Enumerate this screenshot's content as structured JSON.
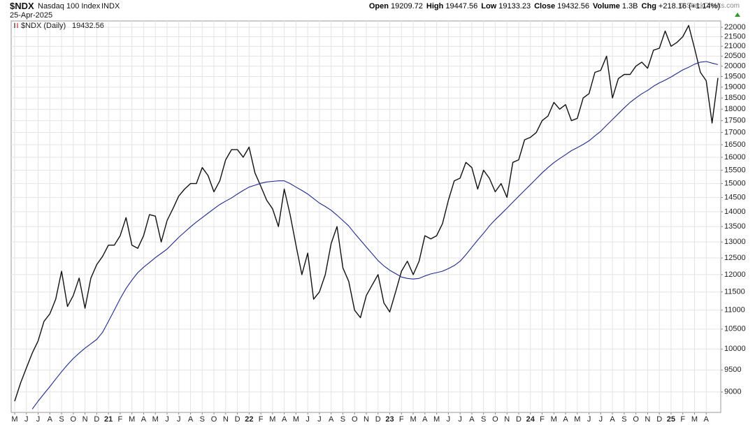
{
  "header": {
    "symbol": "$NDX",
    "name": "Nasdaq 100 Index",
    "exchange": "INDX",
    "date": "25-Apr-2025",
    "stats": [
      {
        "label": "Open",
        "value": "19209.72"
      },
      {
        "label": "High",
        "value": "19447.56"
      },
      {
        "label": "Low",
        "value": "19133.23"
      },
      {
        "label": "Close",
        "value": "19432.56"
      },
      {
        "label": "Volume",
        "value": "1.3B"
      },
      {
        "label": "Chg",
        "value": "+218.16 (+1.14%)"
      }
    ],
    "copyright": "© StockCharts.com"
  },
  "chart_data": {
    "type": "line",
    "yscale": "log",
    "grid": true,
    "categories": [
      "M",
      null,
      "J",
      null,
      "J",
      null,
      "A",
      null,
      "S",
      null,
      "O",
      null,
      "N",
      null,
      "D",
      null,
      "21",
      null,
      "F",
      null,
      "M",
      null,
      "A",
      null,
      "M",
      null,
      "J",
      null,
      "J",
      null,
      "A",
      null,
      "S",
      null,
      "O",
      null,
      "N",
      null,
      "D",
      null,
      "22",
      null,
      "F",
      null,
      "M",
      null,
      "A",
      null,
      "M",
      null,
      "J",
      null,
      "J",
      null,
      "A",
      null,
      "S",
      null,
      "O",
      null,
      "N",
      null,
      "D",
      null,
      "23",
      null,
      "F",
      null,
      "M",
      null,
      "A",
      null,
      "M",
      null,
      "J",
      null,
      "J",
      null,
      "A",
      null,
      "S",
      null,
      "O",
      null,
      "N",
      null,
      "D",
      null,
      "24",
      null,
      "F",
      null,
      "M",
      null,
      "A",
      null,
      "M",
      null,
      "J",
      null,
      "J",
      null,
      "A",
      null,
      "S",
      null,
      "O",
      null,
      "N",
      null,
      "D",
      null,
      "25",
      null,
      "F",
      null,
      "M",
      null,
      "A",
      null,
      null
    ],
    "series": [
      {
        "name": "$NDX (Daily)",
        "color": "#111111",
        "values": [
          8800,
          9200,
          9550,
          9900,
          10200,
          10700,
          10900,
          11300,
          12100,
          11100,
          11400,
          11900,
          11050,
          11900,
          12300,
          12550,
          12900,
          12900,
          13200,
          13800,
          12900,
          12800,
          13200,
          13900,
          13850,
          13000,
          13700,
          14100,
          14550,
          14800,
          15000,
          15000,
          15600,
          15300,
          14700,
          15100,
          15900,
          16300,
          16300,
          16000,
          16400,
          15400,
          14900,
          14400,
          14100,
          13500,
          14800,
          13900,
          12900,
          12000,
          12650,
          11300,
          11500,
          12000,
          12950,
          13500,
          12200,
          11800,
          11000,
          10800,
          11400,
          11700,
          12000,
          11200,
          10950,
          11500,
          12100,
          12400,
          12000,
          12400,
          13200,
          13100,
          13200,
          13600,
          14400,
          15100,
          15200,
          15800,
          15600,
          14800,
          15500,
          15200,
          14700,
          15000,
          14500,
          15800,
          15900,
          16700,
          16800,
          17000,
          17500,
          17700,
          18300,
          18000,
          18200,
          17500,
          17600,
          18500,
          18700,
          19700,
          19800,
          20500,
          18500,
          19400,
          19600,
          19600,
          20000,
          20200,
          19900,
          20800,
          20900,
          21800,
          21000,
          21200,
          21500,
          22100,
          20900,
          19700,
          19300,
          17400,
          19432.56
        ]
      },
      {
        "color": "#1f2a8c",
        "values": [
          null,
          null,
          null,
          8630,
          8800,
          8960,
          9120,
          9290,
          9460,
          9620,
          9770,
          9900,
          10020,
          10130,
          10240,
          10420,
          10700,
          11000,
          11310,
          11600,
          11840,
          12060,
          12220,
          12360,
          12510,
          12640,
          12775,
          12960,
          13150,
          13320,
          13490,
          13650,
          13800,
          13950,
          14100,
          14250,
          14370,
          14480,
          14620,
          14750,
          14870,
          14940,
          15010,
          15060,
          15080,
          15100,
          15100,
          15000,
          14870,
          14750,
          14620,
          14460,
          14300,
          14180,
          14050,
          13880,
          13700,
          13520,
          13280,
          13060,
          12840,
          12630,
          12420,
          12260,
          12130,
          12030,
          11930,
          11890,
          11870,
          11890,
          11960,
          12020,
          12060,
          12100,
          12180,
          12270,
          12400,
          12600,
          12830,
          13060,
          13280,
          13520,
          13730,
          13920,
          14120,
          14330,
          14540,
          14750,
          14960,
          15180,
          15400,
          15600,
          15790,
          15950,
          16100,
          16260,
          16380,
          16510,
          16660,
          16860,
          17050,
          17300,
          17550,
          17800,
          18060,
          18300,
          18500,
          18690,
          18850,
          19040,
          19200,
          19330,
          19480,
          19650,
          19820,
          19950,
          20100,
          20200,
          20230,
          20150,
          20080
        ]
      }
    ],
    "ylim": [
      8561,
      22344
    ],
    "yticks": [
      9000,
      9500,
      10000,
      10500,
      11000,
      11500,
      12000,
      12500,
      13000,
      13500,
      14000,
      14500,
      15000,
      15500,
      16000,
      16500,
      17000,
      17500,
      18000,
      18500,
      19000,
      19500,
      20000,
      20500,
      21000,
      21500,
      22000
    ]
  }
}
